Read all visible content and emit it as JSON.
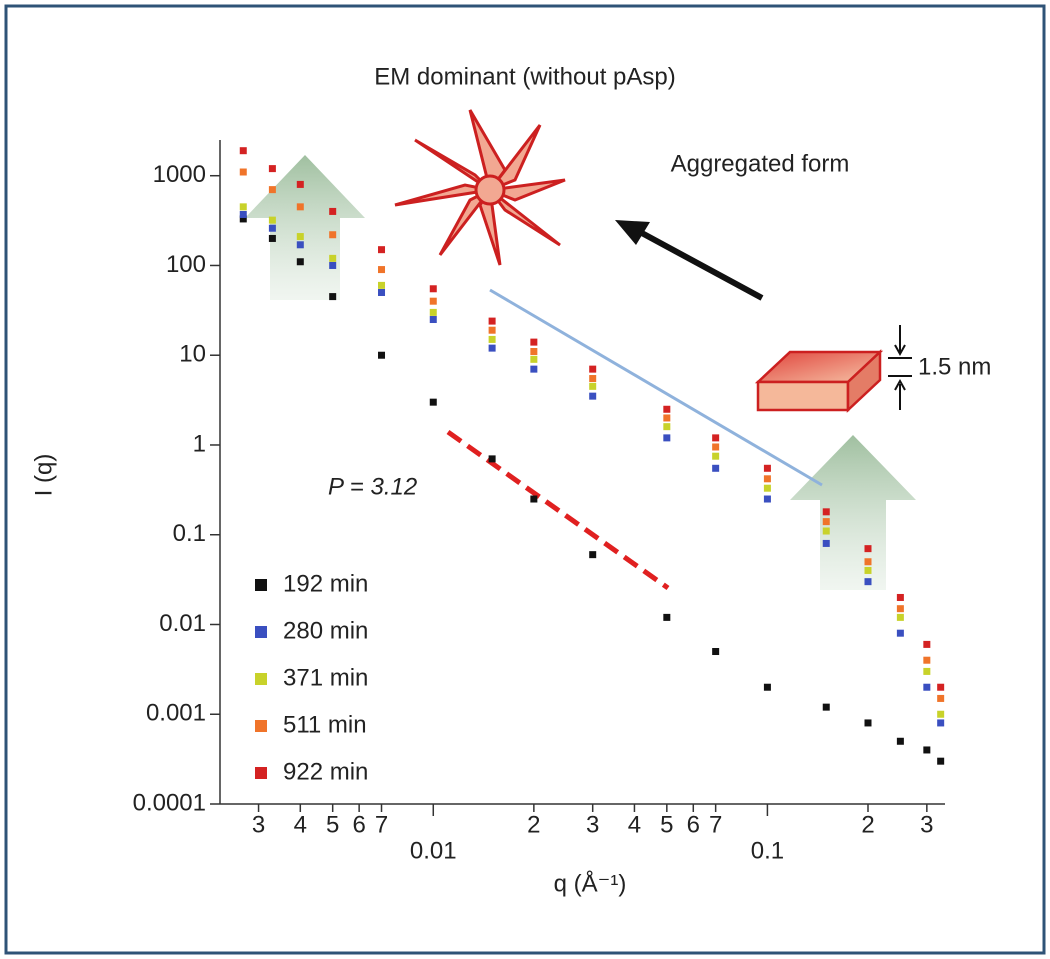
{
  "chart_data": {
    "type": "scatter",
    "title": "EM dominant (without pAsp)",
    "annotations": [
      "Aggregated form",
      "1.5 nm",
      "P = 3.12"
    ],
    "xlabel": "q (Å⁻¹)",
    "ylabel": "I (q)",
    "xscale": "log",
    "yscale": "log",
    "xlim": [
      0.0023,
      0.34
    ],
    "ylim": [
      0.0001,
      2500
    ],
    "xticks": [
      {
        "value": 0.003,
        "label": "3"
      },
      {
        "value": 0.004,
        "label": "4"
      },
      {
        "value": 0.005,
        "label": "5"
      },
      {
        "value": 0.006,
        "label": "6"
      },
      {
        "value": 0.007,
        "label": "7"
      },
      0.01,
      {
        "value": 0.02,
        "label": "2"
      },
      {
        "value": 0.03,
        "label": "3"
      },
      {
        "value": 0.04,
        "label": "4"
      },
      {
        "value": 0.05,
        "label": "5"
      },
      {
        "value": 0.06,
        "label": "6"
      },
      {
        "value": 0.07,
        "label": "7"
      },
      0.1,
      {
        "value": 0.2,
        "label": "2"
      },
      {
        "value": 0.3,
        "label": "3"
      }
    ],
    "yticks": [
      0.0001,
      0.001,
      0.01,
      0.1,
      1,
      10,
      100,
      1000
    ],
    "legend": "lower left",
    "x": [
      0.0027,
      0.0033,
      0.004,
      0.005,
      0.007,
      0.01,
      0.015,
      0.02,
      0.03,
      0.05,
      0.07,
      0.1,
      0.15,
      0.2,
      0.25,
      0.3,
      0.33
    ],
    "series": [
      {
        "name": "192 min",
        "color": "#111111",
        "values": [
          330,
          200,
          110,
          45,
          10,
          3,
          0.7,
          0.25,
          0.06,
          0.012,
          0.005,
          0.002,
          0.0012,
          0.0008,
          0.0005,
          0.0004,
          0.0003
        ]
      },
      {
        "name": "280 min",
        "color": "#3a4fc0",
        "values": [
          370,
          260,
          170,
          100,
          50,
          25,
          12,
          7,
          3.5,
          1.2,
          0.55,
          0.25,
          0.08,
          0.03,
          0.008,
          0.002,
          0.0008
        ]
      },
      {
        "name": "371 min",
        "color": "#c8d22a",
        "values": [
          450,
          320,
          210,
          120,
          60,
          30,
          15,
          9,
          4.5,
          1.6,
          0.75,
          0.33,
          0.11,
          0.04,
          0.012,
          0.003,
          0.001
        ]
      },
      {
        "name": "511 min",
        "color": "#f0742a",
        "values": [
          1100,
          700,
          450,
          220,
          90,
          40,
          19,
          11,
          5.5,
          2,
          0.95,
          0.42,
          0.14,
          0.05,
          0.015,
          0.004,
          0.0015
        ]
      },
      {
        "name": "922 min",
        "color": "#d42222",
        "values": [
          1900,
          1200,
          800,
          400,
          150,
          55,
          24,
          14,
          7,
          2.5,
          1.2,
          0.55,
          0.18,
          0.07,
          0.02,
          0.006,
          0.002
        ]
      }
    ]
  }
}
